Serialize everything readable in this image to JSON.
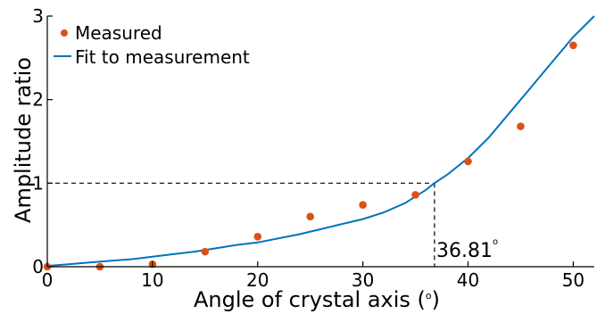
{
  "chart_data": {
    "type": "scatter",
    "xlabel": "Angle of crystal axis (",
    "xlabel_unit": "o",
    "xlabel_close": ")",
    "ylabel": "Amplitude ratio",
    "xlim": [
      0,
      52
    ],
    "ylim": [
      0,
      3
    ],
    "xticks": [
      0,
      10,
      20,
      30,
      40,
      50
    ],
    "yticks": [
      0,
      1,
      2,
      3
    ],
    "grid": false,
    "legend_position": "top-left",
    "colors": {
      "measured": "#d95319",
      "fit": "#0072bd",
      "axis": "#000000"
    },
    "series": [
      {
        "name": "Measured",
        "kind": "points",
        "x": [
          0,
          5,
          10,
          15,
          20,
          25,
          30,
          35,
          40,
          45,
          50
        ],
        "y": [
          0.0,
          0.0,
          0.03,
          0.18,
          0.36,
          0.6,
          0.74,
          0.86,
          1.26,
          1.68,
          2.65
        ]
      },
      {
        "name": "Fit to measurement",
        "kind": "line",
        "x": [
          0,
          2,
          4,
          6,
          8,
          10,
          12,
          14,
          16,
          18,
          20,
          22,
          24,
          26,
          28,
          30,
          32,
          34,
          36,
          36.81,
          38,
          40,
          42,
          44,
          46,
          48,
          50,
          52
        ],
        "y": [
          0.01,
          0.03,
          0.05,
          0.07,
          0.09,
          0.12,
          0.15,
          0.18,
          0.22,
          0.26,
          0.29,
          0.34,
          0.39,
          0.45,
          0.51,
          0.57,
          0.65,
          0.76,
          0.92,
          1.0,
          1.1,
          1.3,
          1.55,
          1.85,
          2.15,
          2.45,
          2.75,
          3.0
        ]
      }
    ],
    "annotation": {
      "x": 36.81,
      "y": 1.0,
      "label": "36.81",
      "unit": "o"
    }
  }
}
